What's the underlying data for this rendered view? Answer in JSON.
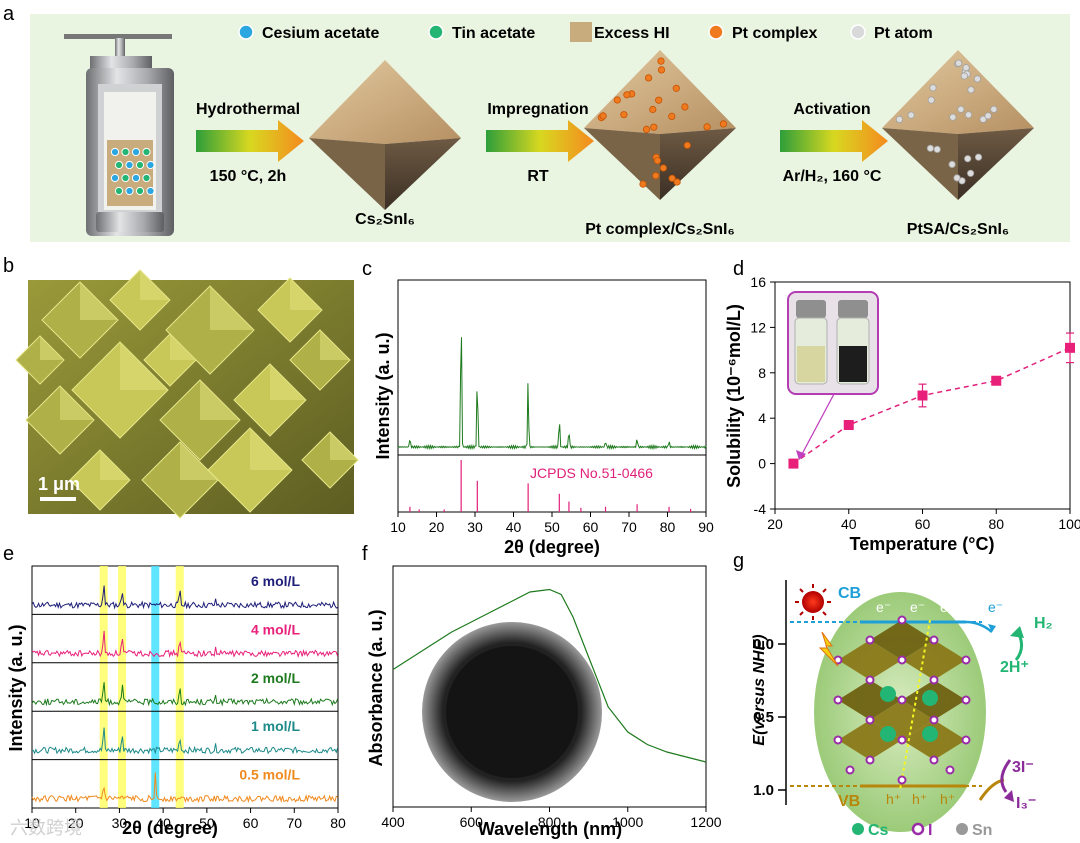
{
  "panel_labels": {
    "a": "a",
    "b": "b",
    "c": "c",
    "d": "d",
    "e": "e",
    "f": "f",
    "g": "g"
  },
  "panel_a": {
    "legend": [
      {
        "label": "Cesium acetate",
        "color": "#2aa6e0"
      },
      {
        "label": "Tin acetate",
        "color": "#22b573"
      },
      {
        "label": "Excess HI",
        "color": "#c9ac7e"
      },
      {
        "label": "Pt complex",
        "color": "#f07a20"
      },
      {
        "label": "Pt atom",
        "color": "#d9d9d9"
      }
    ],
    "steps": [
      {
        "title": "Hydrothermal",
        "cond": "150 °C, 2h"
      },
      {
        "title": "Impregnation",
        "cond": "RT"
      },
      {
        "title": "Activation",
        "cond": "Ar/H₂, 160 °C"
      }
    ],
    "products": [
      "Cs₂SnI₆",
      "Pt complex/Cs₂SnI₆",
      "PtSA/Cs₂SnI₆"
    ]
  },
  "panel_b": {
    "scale_label": "1 μm"
  },
  "watermark": "六数跨境",
  "chart_data": [
    {
      "id": "c",
      "type": "line",
      "xlabel": "2θ (degree)",
      "ylabel": "Intensity (a. u.)",
      "xlim": [
        10,
        90
      ],
      "xticks": [
        "10",
        "20",
        "30",
        "40",
        "50",
        "60",
        "70",
        "80",
        "90"
      ],
      "reference_label": "JCPDS No.51-0466",
      "measured_peaks": [
        [
          13.1,
          0.06
        ],
        [
          26.4,
          1.0
        ],
        [
          30.6,
          0.5
        ],
        [
          43.8,
          0.45
        ],
        [
          51.9,
          0.2
        ],
        [
          54.4,
          0.12
        ],
        [
          63.9,
          0.04
        ],
        [
          72.1,
          0.06
        ],
        [
          80.4,
          0.04
        ]
      ],
      "reference_sticks": [
        [
          13.1,
          0.1
        ],
        [
          15.5,
          0.05
        ],
        [
          22.0,
          0.05
        ],
        [
          26.4,
          1.0
        ],
        [
          30.6,
          0.6
        ],
        [
          43.8,
          0.55
        ],
        [
          51.9,
          0.35
        ],
        [
          54.4,
          0.2
        ],
        [
          57.5,
          0.08
        ],
        [
          63.9,
          0.1
        ],
        [
          72.1,
          0.15
        ],
        [
          80.4,
          0.1
        ],
        [
          86.0,
          0.06
        ]
      ]
    },
    {
      "id": "d",
      "type": "scatter",
      "xlabel": "Temperature (°C)",
      "ylabel": "Solubility (10⁻⁶mol/L)",
      "xlim": [
        20,
        100
      ],
      "ylim": [
        -4,
        16
      ],
      "xticks": [
        "20",
        "40",
        "60",
        "80",
        "100"
      ],
      "yticks": [
        "-4",
        "0",
        "4",
        "8",
        "12",
        "16"
      ],
      "x": [
        25,
        40,
        60,
        80,
        100
      ],
      "y": [
        0.0,
        3.4,
        6.0,
        7.3,
        10.2
      ],
      "error": [
        0.2,
        0.2,
        1.0,
        0.3,
        1.3
      ]
    },
    {
      "id": "e",
      "type": "line",
      "xlabel": "2θ (degree)",
      "ylabel": "Intensity (a. u.)",
      "xlim": [
        10,
        80
      ],
      "xticks": [
        "10",
        "20",
        "30",
        "40",
        "50",
        "60",
        "70",
        "80"
      ],
      "highlight_bands": [
        {
          "center": 26.4,
          "color": "#ffff66"
        },
        {
          "center": 30.6,
          "color": "#ffff66"
        },
        {
          "center": 38.2,
          "color": "#44e0ff"
        },
        {
          "center": 43.8,
          "color": "#ffff66"
        }
      ],
      "series": [
        {
          "name": "6 mol/L",
          "color": "#1f1f7a"
        },
        {
          "name": "4 mol/L",
          "color": "#e8207a"
        },
        {
          "name": "2 mol/L",
          "color": "#1e7a1e"
        },
        {
          "name": "1 mol/L",
          "color": "#1e8a8a"
        },
        {
          "name": "0.5 mol/L",
          "color": "#f08a1e"
        }
      ]
    },
    {
      "id": "f",
      "type": "line",
      "xlabel": "Wavelength (nm)",
      "ylabel": "Absorbance (a. u.)",
      "xlim": [
        400,
        1200
      ],
      "xticks": [
        "400",
        "600",
        "800",
        "1000",
        "1200"
      ],
      "x": [
        400,
        450,
        500,
        550,
        600,
        650,
        700,
        750,
        800,
        830,
        860,
        900,
        950,
        1000,
        1050,
        1100,
        1150,
        1200
      ],
      "y": [
        0.55,
        0.6,
        0.65,
        0.7,
        0.74,
        0.78,
        0.82,
        0.86,
        0.87,
        0.85,
        0.76,
        0.6,
        0.4,
        0.3,
        0.25,
        0.22,
        0.2,
        0.18
      ]
    }
  ],
  "panel_g": {
    "ylabel": "E(versus NHE)",
    "yticks": [
      "0.0",
      "0.5",
      "1.0"
    ],
    "cb_label": "CB",
    "vb_label": "VB",
    "electron": "e⁻",
    "hole": "h⁺",
    "h2": "H₂",
    "h_plus": "2H⁺",
    "iodide": "3I⁻",
    "triiodide": "I₃⁻",
    "legend": [
      {
        "label": "Cs",
        "color": "#22b573"
      },
      {
        "label": "I",
        "color": "#9a2ca8"
      },
      {
        "label": "Sn",
        "color": "#999999"
      }
    ]
  }
}
